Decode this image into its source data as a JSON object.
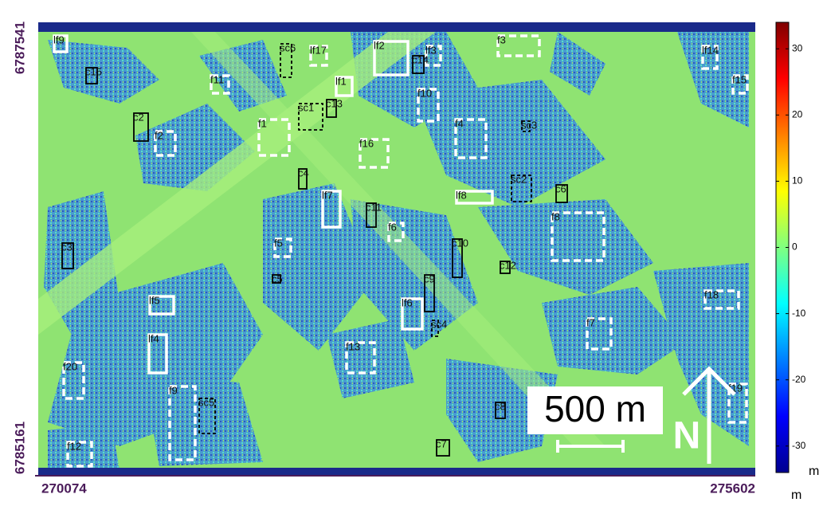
{
  "map": {
    "y_labels": [
      "6787541",
      "6785161"
    ],
    "x_labels": [
      "270074",
      "275602"
    ],
    "scale_bar": "500 m",
    "north": "N",
    "regions": [
      "lf9",
      "c15",
      "sc6",
      "lf17",
      "lf2",
      "lf3",
      "c14",
      "f3",
      "lf14",
      "f15",
      "f11",
      "lf1",
      "f10",
      "sc1",
      "c13",
      "c2",
      "f2",
      "f1",
      "f4",
      "sc3",
      "f16",
      "c4",
      "sc2",
      "c6",
      "lf7",
      "lf8",
      "c11",
      "f8",
      "f6",
      "f5",
      "c3",
      "c10",
      "c12",
      "c5",
      "c9",
      "lf5",
      "lf6",
      "sc4",
      "f18",
      "f7",
      "lf4",
      "f13",
      "f20",
      "f9",
      "sc5",
      "f19",
      "c8",
      "c7",
      "f12"
    ]
  },
  "colorbar": {
    "lim": [
      -34,
      34
    ],
    "ticks": [
      30,
      20,
      10,
      0,
      -10,
      -20,
      -30
    ],
    "unit": "m",
    "axis_unit": "m"
  }
}
